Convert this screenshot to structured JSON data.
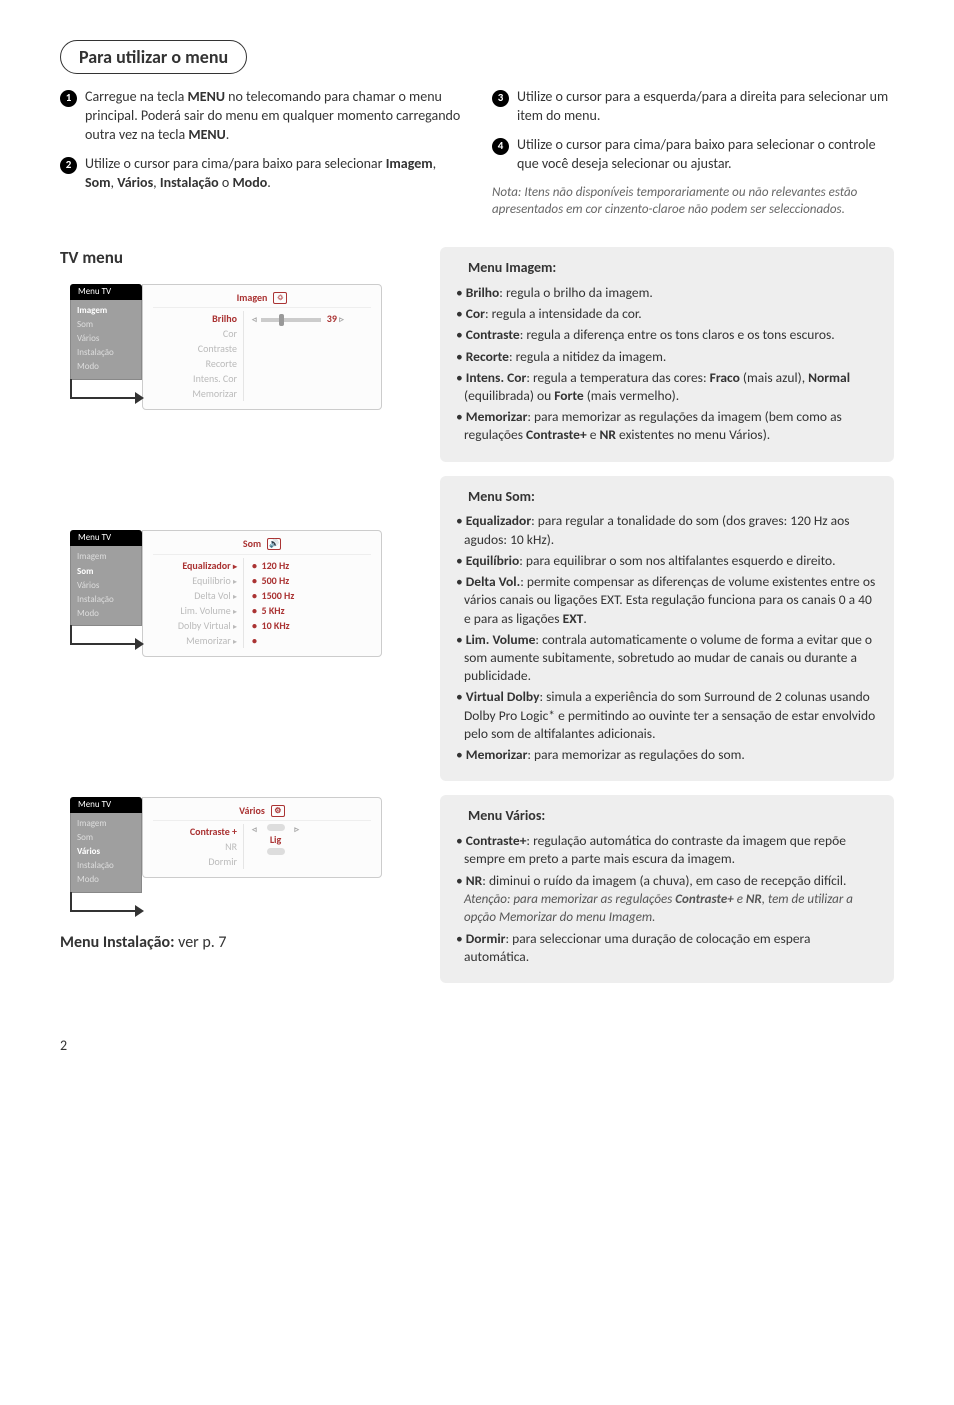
{
  "title": "Para utilizar o menu",
  "intro": {
    "left": [
      {
        "n": "1",
        "html": "Carregue na tecla <b>MENU</b> no telecomando para chamar o menu principal. Poderá sair do menu em qualquer momento carregando outra vez na tecla <b>MENU</b>."
      },
      {
        "n": "2",
        "html": "Utilize o cursor para cima/para baixo para selecionar <b>Imagem</b>, <b>Som</b>, <b>Vários</b>, <b>Instalação</b> o <b>Modo</b>."
      }
    ],
    "right": [
      {
        "n": "3",
        "html": "Utilize o cursor para a esquerda/para a direita para selecionar um item do menu."
      },
      {
        "n": "4",
        "html": "Utilize o cursor para cima/para baixo para selecionar o controle que você deseja selecionar ou ajustar."
      }
    ],
    "note": "Nota: Itens não disponíveis temporariamente ou não relevantes estão apresentados em cor cinzento-claroe não podem ser seleccionados."
  },
  "tv_menu_heading": "TV menu",
  "menus": {
    "imagem": {
      "tab": "Menu TV",
      "header": "Imagen",
      "side": [
        "Imagem",
        "Som",
        "Vários",
        "Instalação",
        "Modo"
      ],
      "side_active": 0,
      "labels": [
        "Brilho",
        "Cor",
        "Contraste",
        "Recorte",
        "Intens. Cor",
        "Memorizar"
      ],
      "labels_active": 0,
      "value_row": "39"
    },
    "som": {
      "tab": "Menu TV",
      "header": "Som",
      "side": [
        "Imagem",
        "Som",
        "Vários",
        "Instalação",
        "Modo"
      ],
      "side_active": 1,
      "labels": [
        "Equalizador",
        "Equilíbrio",
        "Delta Vol",
        "Lim. Volume",
        "Dolby Virtual",
        "Memorizar"
      ],
      "labels_active": 0,
      "values": [
        "120 Hz",
        "500 Hz",
        "1500 Hz",
        "5 KHz",
        "10 KHz",
        ""
      ]
    },
    "varios": {
      "tab": "Menu TV",
      "header": "Vários",
      "side": [
        "Imagem",
        "Som",
        "Vários",
        "Instalação",
        "Modo"
      ],
      "side_active": 2,
      "labels": [
        "Contraste +",
        "NR",
        "Dormir"
      ],
      "labels_active": 0,
      "value_center": "Lig"
    }
  },
  "boxes": {
    "imagem": {
      "title": "Menu Imagem:",
      "items": [
        "<b>Brilho</b>: regula o brilho da imagem.",
        "<b>Cor</b>: regula a intensidade da cor.",
        "<b>Contraste</b>: regula a diferença entre os tons claros e os tons escuros.",
        "<b>Recorte</b>: regula a nitidez da imagem.",
        "<b>Intens. Cor</b>: regula a temperatura das cores: <b>Fraco</b> (mais azul), <b>Normal</b> (equilibrada) ou <b>Forte</b> (mais vermelho).",
        "<b>Memorizar</b>: para memorizar as regulações da imagem (bem como as regulações <b>Contraste+</b> e <b>NR</b> existentes no menu Vários)."
      ]
    },
    "som": {
      "title": "Menu Som:",
      "items": [
        "<b>Equalizador</b>: para regular a tonalidade do som (dos graves: 120 Hz aos agudos: 10 kHz).",
        "<b>Equilíbrio</b>: para equilibrar o som nos altifalantes esquerdo e direito.",
        "<b>Delta Vol.</b>: permite compensar as diferenças de volume existentes entre os vários canais ou ligações EXT. Esta regulação funciona para os canais 0 a 40 e para as ligações <b>EXT</b>.",
        "<b>Lim. Volume</b>: contrala automaticamente o volume de forma a evitar que o som aumente subitamente, sobretudo ao mudar de canais ou durante a publicidade.",
        "<b>Virtual Dolby</b>: simula a experiência do som Surround de 2 colunas usando Dolby Pro Logic* e permitindo ao ouvinte ter a sensação de estar envolvido pelo som de altifalantes adicionais.",
        "<b>Memorizar</b>: para memorizar as regulações do som."
      ]
    },
    "varios": {
      "title": "Menu Vários:",
      "items": [
        "<b>Contraste+</b>: regulação automática do contraste da imagem que repõe sempre em preto a parte mais escura da imagem.",
        "<b>NR</b>: diminui o ruído da imagem (a chuva), em caso de recepção difícil.<br><span class='sub-note'>Atenção: para memorizar as regulações <b>Contraste+</b> e <b>NR</b>, tem de utilizar a opção Memorizar do menu Imagem.</span>",
        "<b>Dormir</b>: para seleccionar uma duração de colocação em espera automática."
      ]
    }
  },
  "footer": {
    "label": "Menu Instalação:",
    "rest": " ver p. 7"
  },
  "page": "2",
  "colors": {
    "accent": "#a33333",
    "box_bg": "#eeeeee",
    "sidebar_bg": "#9f9f9f",
    "muted": "#bbbbbb"
  }
}
